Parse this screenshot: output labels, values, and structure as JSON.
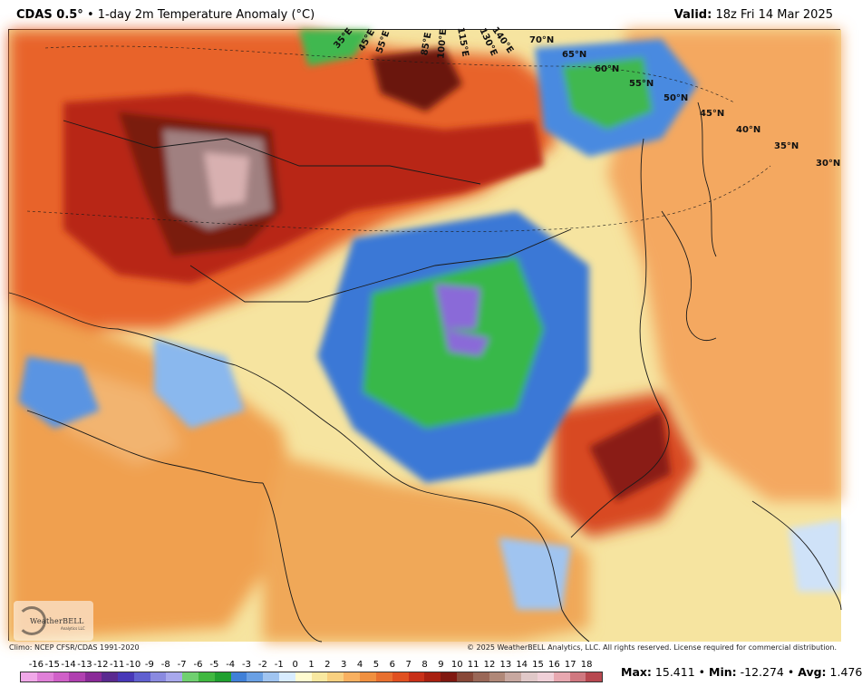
{
  "header": {
    "model": "CDAS 0.5°",
    "bullet": "•",
    "product": "1-day 2m Temperature Anomaly (°C)",
    "valid_label": "Valid:",
    "valid_time": "18z Fri 14 Mar 2025"
  },
  "map": {
    "lat_labels": [
      "70°N",
      "65°N",
      "60°N",
      "55°N",
      "50°N",
      "45°N",
      "40°N",
      "35°N",
      "30°N"
    ],
    "lon_labels": [
      "35°E",
      "45°E",
      "55°E",
      "85°E",
      "100°E",
      "115°E",
      "130°E",
      "140°E"
    ],
    "colors": {
      "ocean_neutral": "#f6e4a0",
      "warm_orange": "#f08a3a",
      "warm_red": "#c9301a",
      "hot_darkred": "#8a1a12",
      "very_hot_grey": "#a08880",
      "cool_blue": "#3b78d6",
      "cold_green": "#38b84a",
      "very_cold_purple": "#8a6ad8"
    }
  },
  "logo": {
    "text": "WeatherBELL",
    "sub": "Analytics LLC"
  },
  "footer": {
    "climo": "Climo: NCEP CFSR/CDAS 1991-2020",
    "copyright": "© 2025 WeatherBELL Analytics, LLC. All rights reserved. License required for commercial distribution."
  },
  "colorbar": {
    "ticks": [
      "-16",
      "-15",
      "-14",
      "-13",
      "-12",
      "-11",
      "-10",
      "-9",
      "-8",
      "-7",
      "-6",
      "-5",
      "-4",
      "-3",
      "-2",
      "-1",
      "0",
      "1",
      "2",
      "3",
      "4",
      "5",
      "6",
      "7",
      "8",
      "9",
      "10",
      "11",
      "12",
      "13",
      "14",
      "15",
      "16",
      "17",
      "18"
    ],
    "colors": [
      "#f0a8e8",
      "#e080d8",
      "#d060c8",
      "#b040b0",
      "#8a2a98",
      "#5a2a90",
      "#4838b8",
      "#6060d0",
      "#8a8ae0",
      "#a8a8ec",
      "#70d070",
      "#40b840",
      "#20a030",
      "#4080d8",
      "#6aa0e4",
      "#a0c4f0",
      "#d8ecff",
      "#fffbd0",
      "#f8e8a0",
      "#f8d080",
      "#f8b060",
      "#f09040",
      "#e87030",
      "#e05020",
      "#c83018",
      "#a82010",
      "#801810",
      "#884838",
      "#9a6858",
      "#b08878",
      "#c8a8a0",
      "#e0c8c8",
      "#f0d0d8",
      "#e8a8b0",
      "#d07880",
      "#b84850"
    ],
    "stats_max_label": "Max:",
    "stats_max": "15.411",
    "stats_min_label": "Min:",
    "stats_min": "-12.274",
    "stats_avg_label": "Avg:",
    "stats_avg": "1.476",
    "bullet": "•"
  }
}
